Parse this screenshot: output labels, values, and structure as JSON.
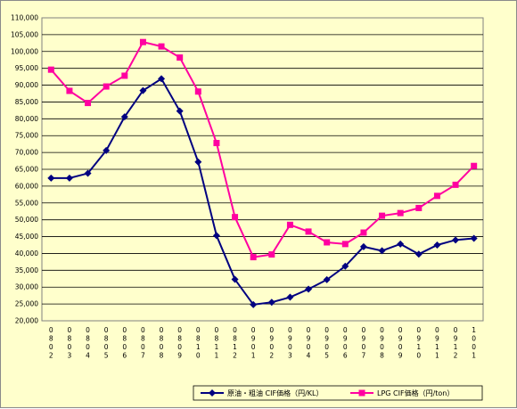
{
  "chart_data": {
    "type": "line",
    "categories": [
      [
        "0",
        "8",
        "0",
        "2"
      ],
      [
        "0",
        "8",
        "0",
        "3"
      ],
      [
        "0",
        "8",
        "0",
        "4"
      ],
      [
        "0",
        "8",
        "0",
        "5"
      ],
      [
        "0",
        "8",
        "0",
        "6"
      ],
      [
        "0",
        "8",
        "0",
        "7"
      ],
      [
        "0",
        "8",
        "0",
        "8"
      ],
      [
        "0",
        "8",
        "0",
        "9"
      ],
      [
        "0",
        "8",
        "1",
        "0"
      ],
      [
        "0",
        "8",
        "1",
        "1"
      ],
      [
        "0",
        "8",
        "1",
        "2"
      ],
      [
        "0",
        "9",
        "0",
        "1"
      ],
      [
        "0",
        "9",
        "0",
        "2"
      ],
      [
        "0",
        "9",
        "0",
        "3"
      ],
      [
        "0",
        "9",
        "0",
        "4"
      ],
      [
        "0",
        "9",
        "0",
        "5"
      ],
      [
        "0",
        "9",
        "0",
        "6"
      ],
      [
        "0",
        "9",
        "0",
        "7"
      ],
      [
        "0",
        "9",
        "0",
        "8"
      ],
      [
        "0",
        "9",
        "0",
        "9"
      ],
      [
        "0",
        "9",
        "1",
        "0"
      ],
      [
        "0",
        "9",
        "1",
        "1"
      ],
      [
        "0",
        "9",
        "1",
        "2"
      ],
      [
        "1",
        "0",
        "0",
        "1"
      ]
    ],
    "series": [
      {
        "name": "原油・粗油 CIF価格（円/KL）",
        "color": "#000080",
        "marker": "diamond",
        "values": [
          62400,
          62400,
          63800,
          70600,
          80600,
          88400,
          91900,
          82300,
          67200,
          45300,
          32300,
          24800,
          25500,
          27000,
          29400,
          32200,
          36200,
          42000,
          40800,
          42800,
          39800,
          42500,
          44000,
          44500
        ]
      },
      {
        "name": "LPG CIF価格（円/ton）",
        "color": "#ff00a0",
        "marker": "square",
        "values": [
          94600,
          88300,
          84700,
          89600,
          92800,
          102800,
          101500,
          98200,
          88100,
          72800,
          50800,
          38900,
          39700,
          48500,
          46500,
          43300,
          42800,
          46200,
          51200,
          52000,
          53500,
          57100,
          60400,
          66000
        ]
      }
    ],
    "y_ticks": [
      "20,000",
      "25,000",
      "30,000",
      "35,000",
      "40,000",
      "45,000",
      "50,000",
      "55,000",
      "60,000",
      "65,000",
      "70,000",
      "75,000",
      "80,000",
      "85,000",
      "90,000",
      "95,000",
      "100,000",
      "105,000",
      "110,000"
    ],
    "ylim": [
      20000,
      110000
    ],
    "grid": true,
    "legend_position": "bottom-right"
  }
}
